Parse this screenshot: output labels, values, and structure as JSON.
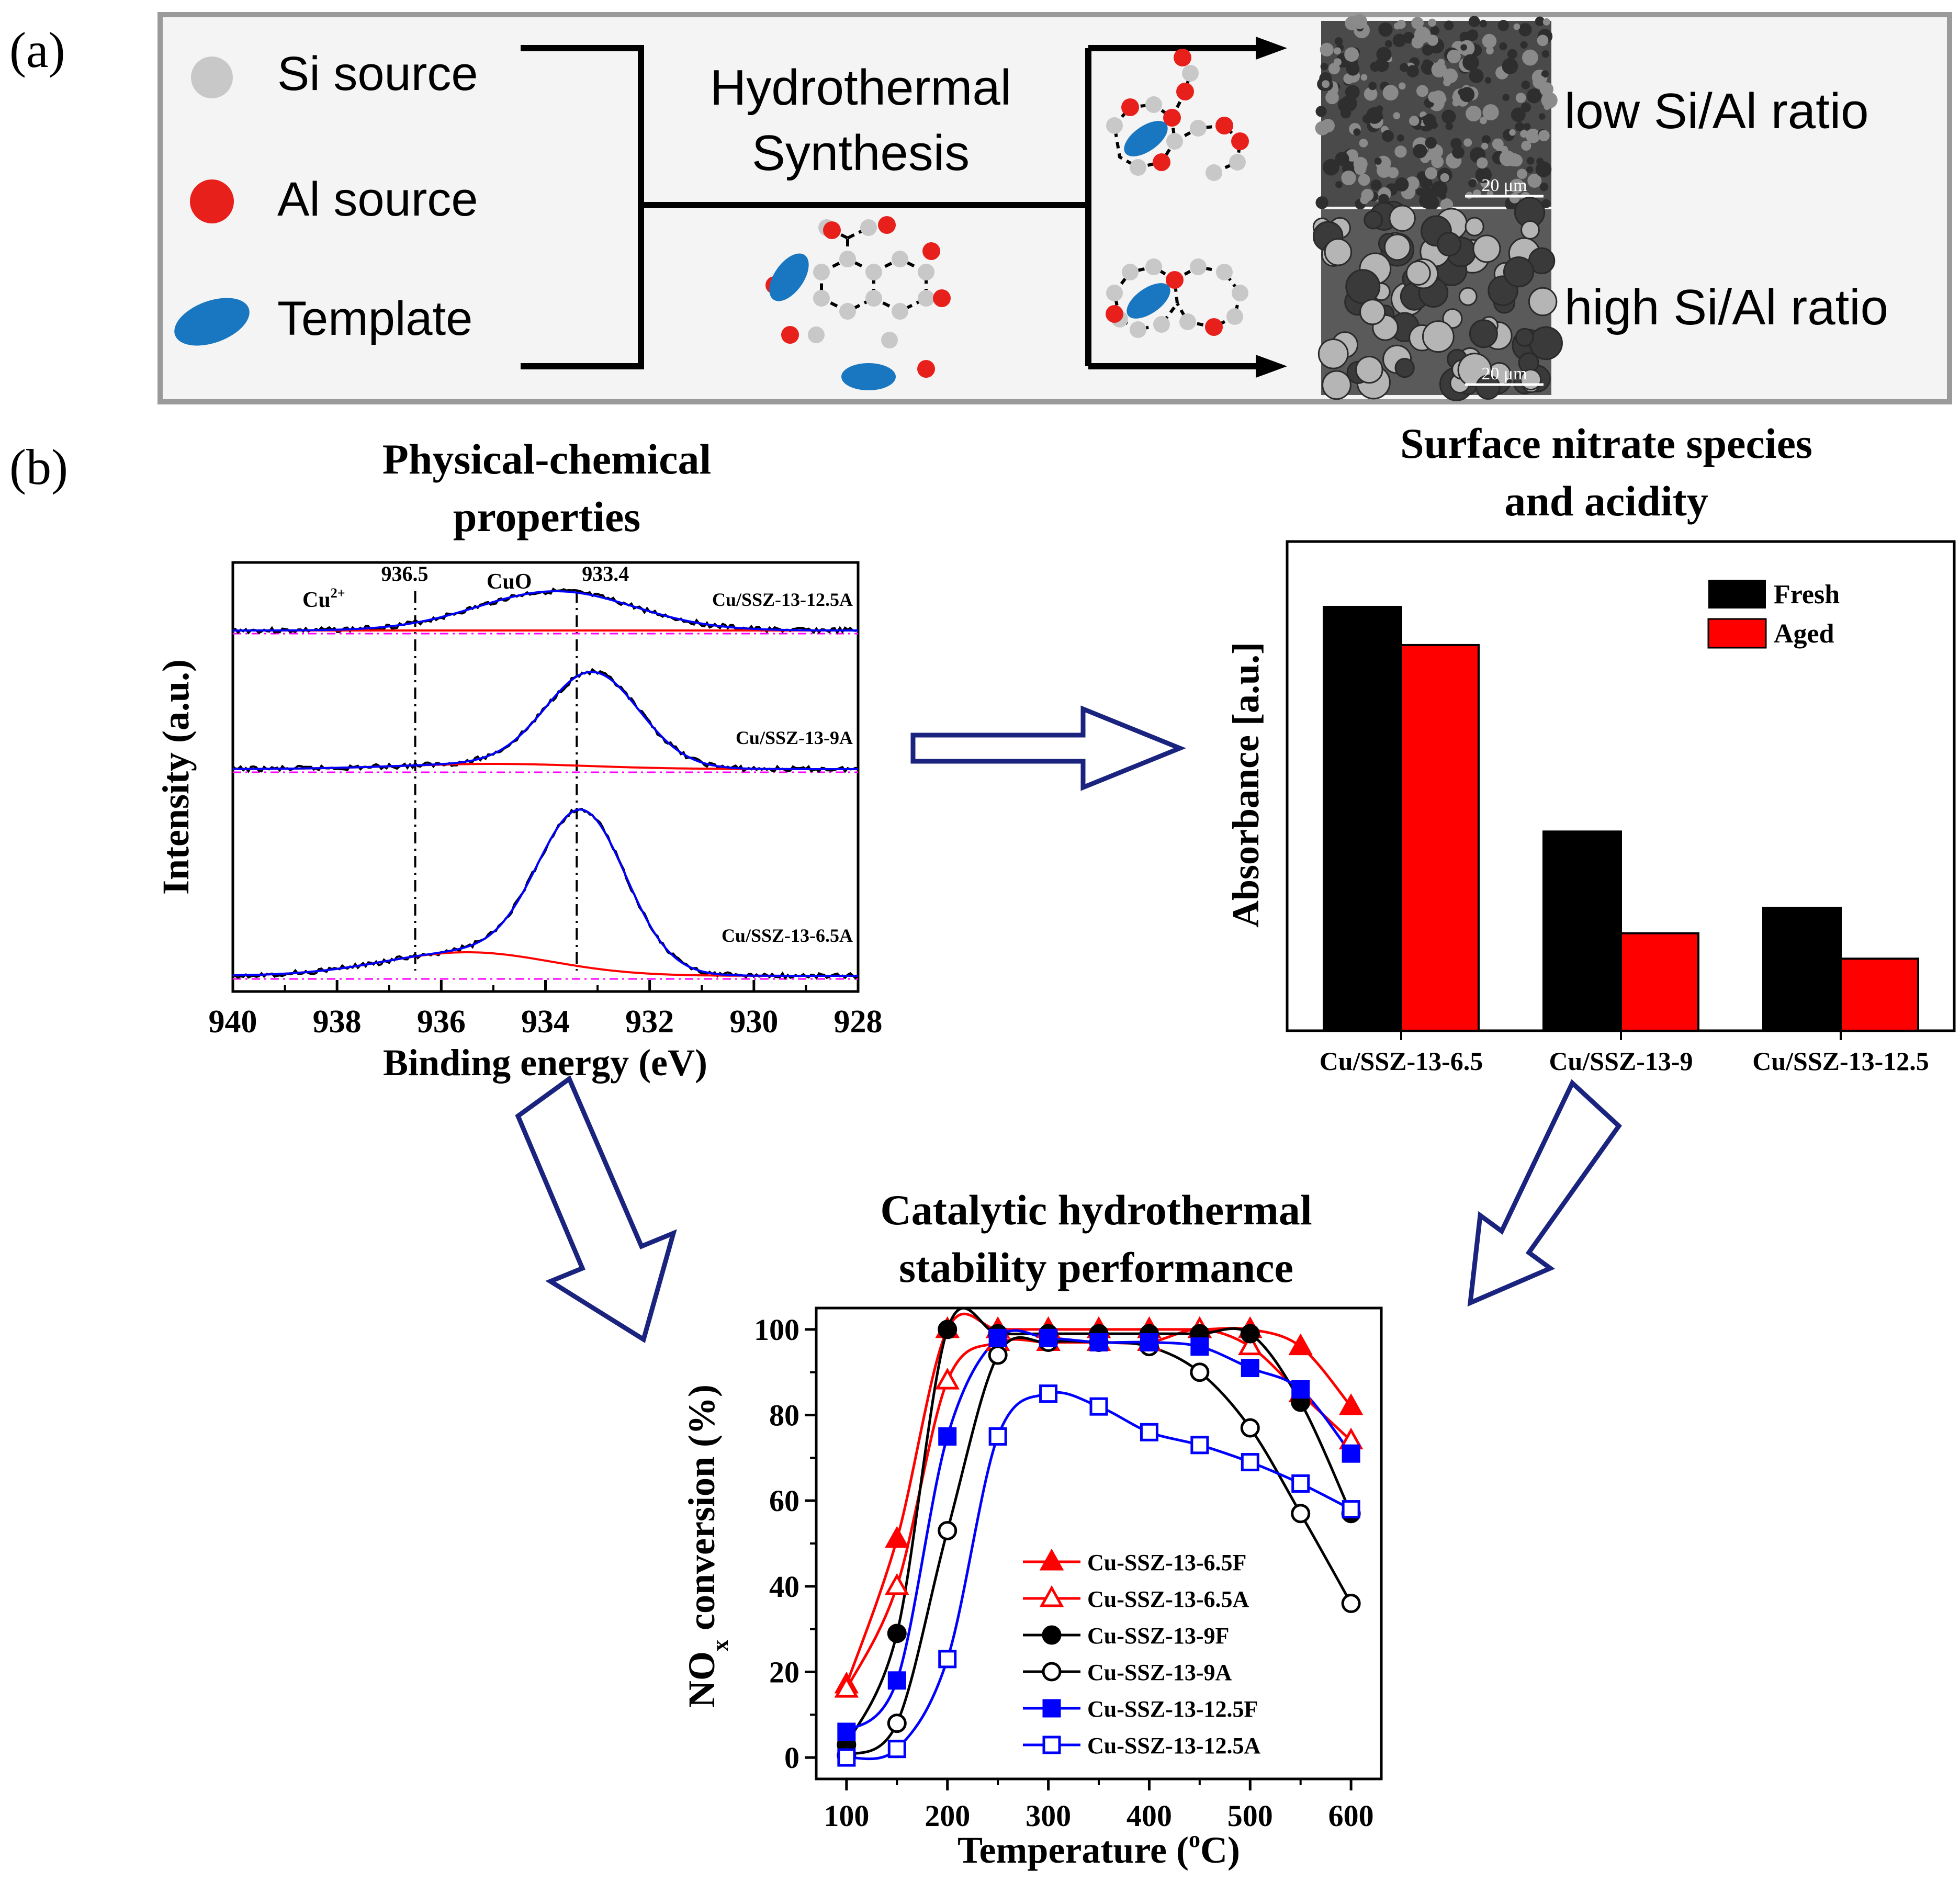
{
  "panel_a": {
    "label": "(a)",
    "legend": [
      {
        "label": "Si source",
        "shape": "circle",
        "color": "#c8c8c8"
      },
      {
        "label": "Al source",
        "shape": "circle",
        "color": "#e8201c"
      },
      {
        "label": "Template",
        "shape": "ellipse",
        "color": "#1877c0"
      }
    ],
    "process_line1": "Hydrothermal",
    "process_line2": "Synthesis",
    "outcomes": [
      {
        "label": "low Si/Al ratio",
        "scale": "20 μm"
      },
      {
        "label": "high Si/Al ratio",
        "scale": "20 μm"
      }
    ],
    "colors": {
      "frame": "#9a9a9a",
      "panel_bg": "#f4f4f4",
      "si": "#c8c8c8",
      "al": "#e8201c",
      "template": "#1877c0",
      "sem_low": "#4a4a4a",
      "sem_high": "#5a5a5a"
    }
  },
  "panel_b": {
    "label": "(b)",
    "arrow_color": "#1a237e",
    "colors": {
      "red": "#ff0000",
      "blue": "#0000ff",
      "black": "#000000",
      "magenta": "#ff00ff",
      "fresh": "#000000",
      "aged": "#ff0000"
    }
  },
  "chart_data": [
    {
      "id": "xps",
      "type": "line",
      "title_line1": "Physical-chemical",
      "title_line2": "properties",
      "xlabel": "Binding energy (eV)",
      "ylabel": "Intensity (a.u.)",
      "xlim": [
        940,
        928
      ],
      "xticks": [
        940,
        938,
        936,
        934,
        932,
        930,
        928
      ],
      "reference_lines": [
        {
          "x": 936.5,
          "label": "936.5"
        },
        {
          "x": 933.4,
          "label": "933.4"
        }
      ],
      "species_labels": [
        {
          "label": "Cu",
          "sup": "2+"
        },
        {
          "label": "CuO",
          "sup": ""
        }
      ],
      "series": [
        {
          "name": "Cu/SSZ-13-12.5A",
          "offset": 2,
          "cuo_peak": {
            "center": 933.8,
            "height": 0.3,
            "width": 1.5
          },
          "cu2_peak": {
            "center": 936.0,
            "height": 0.0,
            "width": 1.5
          }
        },
        {
          "name": "Cu/SSZ-13-9A",
          "offset": 1,
          "cuo_peak": {
            "center": 933.1,
            "height": 0.72,
            "width": 0.9
          },
          "cu2_peak": {
            "center": 935.0,
            "height": 0.04,
            "width": 1.8
          }
        },
        {
          "name": "Cu/SSZ-13-6.5A",
          "offset": 0,
          "cuo_peak": {
            "center": 933.3,
            "height": 1.2,
            "width": 0.85
          },
          "cu2_peak": {
            "center": 935.5,
            "height": 0.18,
            "width": 1.6
          }
        }
      ]
    },
    {
      "id": "absorbance",
      "type": "bar",
      "title_line1": "Surface nitrate species",
      "title_line2": "and acidity",
      "ylabel": "Absorbance [a.u.]",
      "categories": [
        "Cu/SSZ-13-6.5",
        "Cu/SSZ-13-9",
        "Cu/SSZ-13-12.5"
      ],
      "ylim": [
        0,
        1.0
      ],
      "series": [
        {
          "name": "Fresh",
          "values": [
            1.0,
            0.47,
            0.29
          ]
        },
        {
          "name": "Aged",
          "values": [
            0.91,
            0.23,
            0.17
          ]
        }
      ]
    },
    {
      "id": "nox",
      "type": "line",
      "title_line1": "Catalytic hydrothermal",
      "title_line2": "stability performance",
      "xlabel": "Temperature (",
      "xlabel_sup": "o",
      "xlabel_end": "C)",
      "ylabel_main": "NO",
      "ylabel_sub": "x",
      "ylabel_end": " conversion (%)",
      "xlim": [
        70,
        630
      ],
      "ylim": [
        -5,
        105
      ],
      "xticks": [
        100,
        200,
        300,
        400,
        500,
        600
      ],
      "yticks": [
        0,
        20,
        40,
        60,
        80,
        100
      ],
      "x": [
        100,
        150,
        200,
        250,
        300,
        350,
        400,
        450,
        500,
        550,
        600
      ],
      "series": [
        {
          "name": "Cu-SSZ-13-6.5F",
          "color": "#ff0000",
          "marker": "triangle",
          "filled": true,
          "values": [
            17,
            51,
            100,
            100,
            100,
            100,
            100,
            100,
            100,
            96,
            82
          ]
        },
        {
          "name": "Cu-SSZ-13-6.5A",
          "color": "#ff0000",
          "marker": "triangle",
          "filled": false,
          "values": [
            16,
            40,
            88,
            97,
            97,
            97,
            97,
            100,
            96,
            85,
            74
          ]
        },
        {
          "name": "Cu-SSZ-13-9F",
          "color": "#000000",
          "marker": "circle",
          "filled": true,
          "values": [
            3,
            29,
            100,
            99,
            99,
            99,
            99,
            99,
            99,
            83,
            57
          ]
        },
        {
          "name": "Cu-SSZ-13-9A",
          "color": "#000000",
          "marker": "circle",
          "filled": false,
          "values": [
            0.5,
            8,
            53,
            94,
            97,
            97,
            96,
            90,
            77,
            57,
            36
          ]
        },
        {
          "name": "Cu-SSZ-13-12.5F",
          "color": "#0000ff",
          "marker": "square",
          "filled": true,
          "values": [
            6,
            18,
            75,
            98,
            98,
            97,
            97,
            96,
            91,
            86,
            71
          ]
        },
        {
          "name": "Cu-SSZ-13-12.5A",
          "color": "#0000ff",
          "marker": "square",
          "filled": false,
          "values": [
            0,
            2,
            23,
            75,
            85,
            82,
            76,
            73,
            69,
            64,
            58
          ]
        }
      ]
    }
  ]
}
